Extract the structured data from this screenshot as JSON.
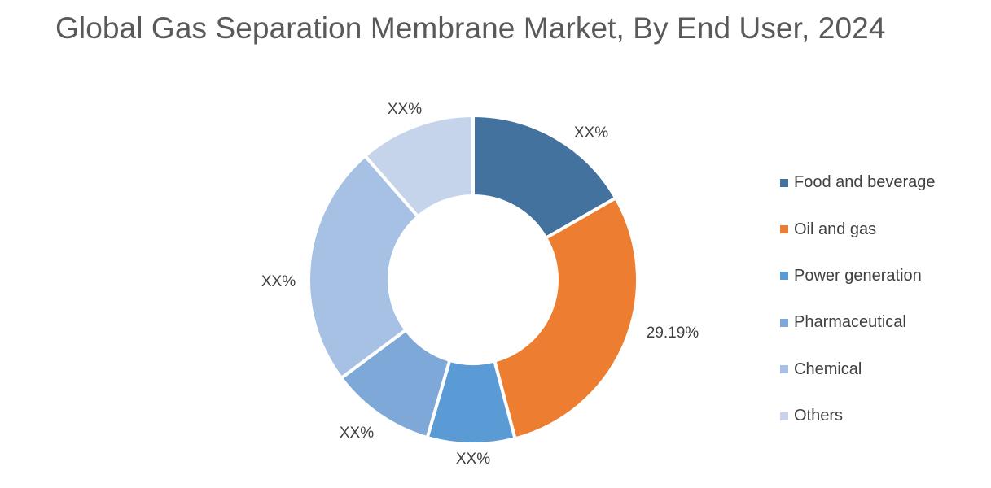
{
  "title": "Global Gas Separation Membrane Market, By End User, 2024",
  "chart_data": {
    "type": "pie",
    "donut": true,
    "title": "Global Gas Separation Membrane Market, By End User, 2024",
    "legend_position": "right",
    "series": [
      {
        "name": "Food and beverage",
        "value": 16.7,
        "label": "XX%",
        "color": "#44729E"
      },
      {
        "name": "Oil and gas",
        "value": 29.19,
        "label": "29.19%",
        "color": "#ED7D31"
      },
      {
        "name": "Power generation",
        "value": 8.6,
        "label": "XX%",
        "color": "#5B9BD5"
      },
      {
        "name": "Pharmaceutical",
        "value": 10.3,
        "label": "XX%",
        "color": "#7EA8D8"
      },
      {
        "name": "Chemical",
        "value": 23.8,
        "label": "XX%",
        "color": "#A6C1E4"
      },
      {
        "name": "Others",
        "value": 11.4,
        "label": "XX%",
        "color": "#C5D4EB"
      }
    ]
  }
}
